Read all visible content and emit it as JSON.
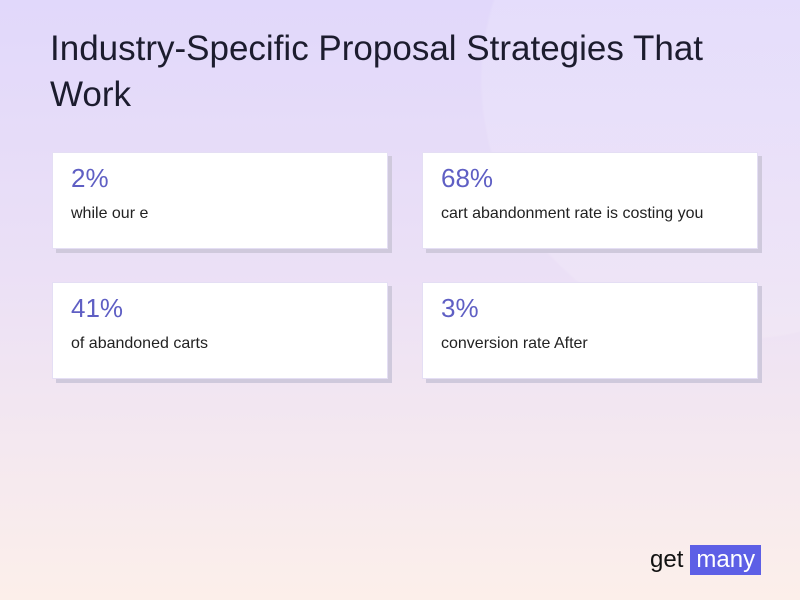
{
  "title": "Industry-Specific Proposal Strategies That Work",
  "cards": [
    {
      "stat": "2%",
      "text": "while our e"
    },
    {
      "stat": "68%",
      "text": "cart abandonment rate is costing you"
    },
    {
      "stat": "41%",
      "text": "of abandoned carts"
    },
    {
      "stat": "3%",
      "text": "conversion rate After"
    }
  ],
  "logo": {
    "part1": "get",
    "part2": "many"
  },
  "colors": {
    "accent": "#5f5fc4",
    "logo_bg": "#5d5fe6"
  }
}
